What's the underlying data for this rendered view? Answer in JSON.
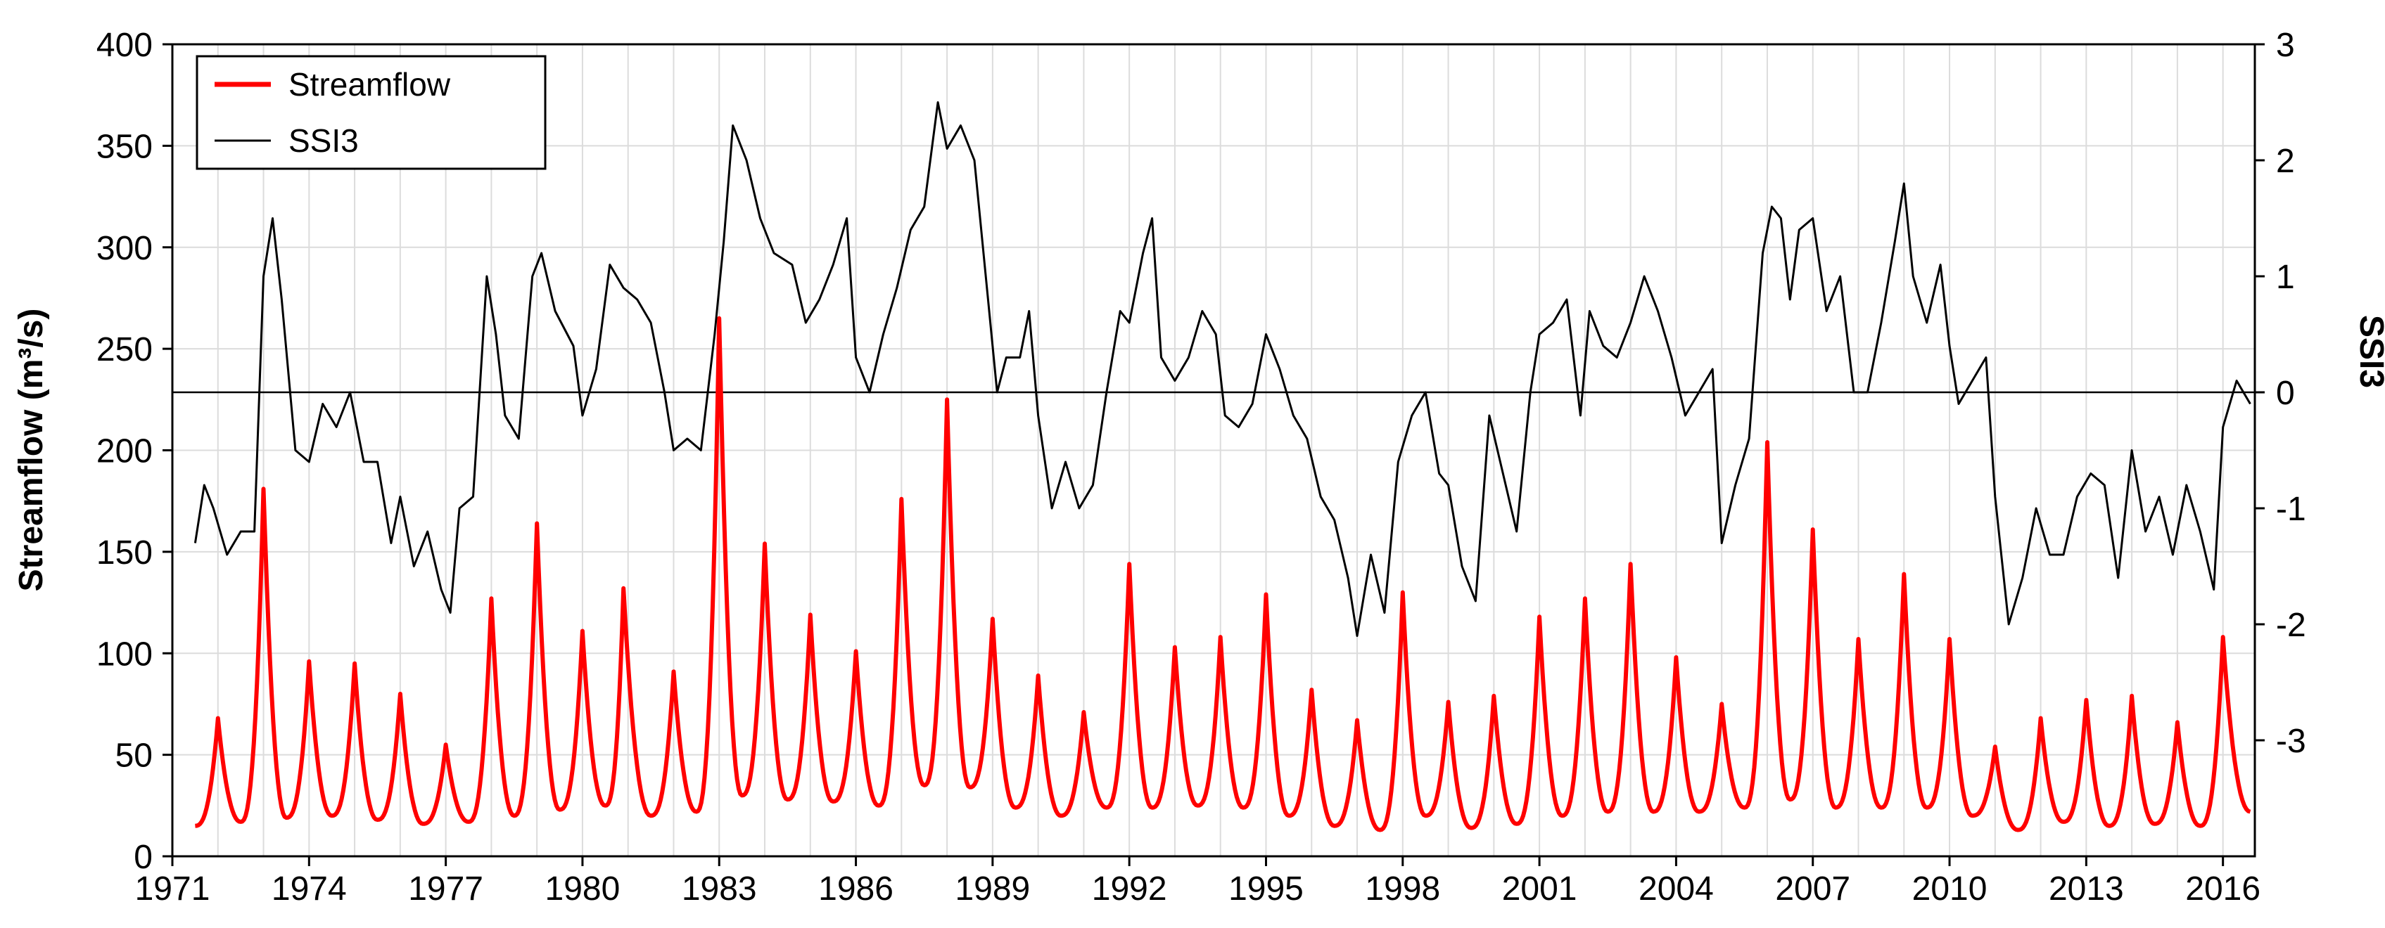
{
  "chart_data": {
    "type": "line",
    "title": "",
    "xlabel": "",
    "ylabel": "Streamflow (m³/s)",
    "y2label": "SSI3",
    "xlim": [
      1971,
      2016.7
    ],
    "ylim": [
      0,
      400
    ],
    "y2lim": [
      -4.0,
      3.0
    ],
    "x_ticks": [
      1971,
      1974,
      1977,
      1980,
      1983,
      1986,
      1989,
      1992,
      1995,
      1998,
      2001,
      2004,
      2007,
      2010,
      2013,
      2016
    ],
    "y_ticks": [
      0,
      50,
      100,
      150,
      200,
      250,
      300,
      350,
      400
    ],
    "y2_ticks": [
      -3,
      -2,
      -1,
      0,
      1,
      2,
      3
    ],
    "grid": true,
    "reference_line_y2": 0,
    "legend_position": "top-left",
    "series": [
      {
        "name": "Streamflow",
        "axis": "left",
        "color": "#ff0000",
        "peaks": [
          [
            1972.0,
            68
          ],
          [
            1973.0,
            181
          ],
          [
            1974.0,
            96
          ],
          [
            1975.0,
            95
          ],
          [
            1976.0,
            80
          ],
          [
            1977.0,
            55
          ],
          [
            1978.0,
            127
          ],
          [
            1979.0,
            164
          ],
          [
            1980.0,
            111
          ],
          [
            1980.9,
            132
          ],
          [
            1982.0,
            91
          ],
          [
            1983.0,
            265
          ],
          [
            1984.0,
            154
          ],
          [
            1985.0,
            119
          ],
          [
            1986.0,
            101
          ],
          [
            1987.0,
            176
          ],
          [
            1988.0,
            225
          ],
          [
            1989.0,
            117
          ],
          [
            1990.0,
            89
          ],
          [
            1991.0,
            71
          ],
          [
            1992.0,
            144
          ],
          [
            1993.0,
            103
          ],
          [
            1994.0,
            108
          ],
          [
            1995.0,
            129
          ],
          [
            1996.0,
            82
          ],
          [
            1997.0,
            67
          ],
          [
            1998.0,
            130
          ],
          [
            1999.0,
            76
          ],
          [
            2000.0,
            79
          ],
          [
            2001.0,
            118
          ],
          [
            2002.0,
            127
          ],
          [
            2003.0,
            144
          ],
          [
            2004.0,
            98
          ],
          [
            2005.0,
            75
          ],
          [
            2006.0,
            204
          ],
          [
            2007.0,
            161
          ],
          [
            2008.0,
            107
          ],
          [
            2009.0,
            139
          ],
          [
            2010.0,
            107
          ],
          [
            2011.0,
            54
          ],
          [
            2012.0,
            68
          ],
          [
            2013.0,
            77
          ],
          [
            2014.0,
            79
          ],
          [
            2015.0,
            66
          ],
          [
            2016.0,
            108
          ]
        ],
        "troughs": [
          [
            1971.5,
            15
          ],
          [
            1972.5,
            17
          ],
          [
            1973.5,
            19
          ],
          [
            1974.5,
            20
          ],
          [
            1975.5,
            18
          ],
          [
            1976.5,
            16
          ],
          [
            1977.5,
            17
          ],
          [
            1978.5,
            20
          ],
          [
            1979.5,
            23
          ],
          [
            1980.5,
            25
          ],
          [
            1981.5,
            20
          ],
          [
            1982.5,
            22
          ],
          [
            1983.5,
            30
          ],
          [
            1984.5,
            28
          ],
          [
            1985.5,
            27
          ],
          [
            1986.5,
            25
          ],
          [
            1987.5,
            35
          ],
          [
            1988.5,
            34
          ],
          [
            1989.5,
            24
          ],
          [
            1990.5,
            20
          ],
          [
            1991.5,
            24
          ],
          [
            1992.5,
            24
          ],
          [
            1993.5,
            25
          ],
          [
            1994.5,
            24
          ],
          [
            1995.5,
            20
          ],
          [
            1996.5,
            15
          ],
          [
            1997.5,
            13
          ],
          [
            1998.5,
            20
          ],
          [
            1999.5,
            14
          ],
          [
            2000.5,
            16
          ],
          [
            2001.5,
            20
          ],
          [
            2002.5,
            22
          ],
          [
            2003.5,
            22
          ],
          [
            2004.5,
            22
          ],
          [
            2005.5,
            24
          ],
          [
            2006.5,
            28
          ],
          [
            2007.5,
            24
          ],
          [
            2008.5,
            24
          ],
          [
            2009.5,
            24
          ],
          [
            2010.5,
            20
          ],
          [
            2011.5,
            13
          ],
          [
            2012.5,
            17
          ],
          [
            2013.5,
            15
          ],
          [
            2014.5,
            16
          ],
          [
            2015.5,
            15
          ],
          [
            2016.6,
            22
          ]
        ]
      },
      {
        "name": "SSI3",
        "axis": "right",
        "color": "#000000",
        "values": [
          [
            1971.5,
            -1.3
          ],
          [
            1971.7,
            -0.8
          ],
          [
            1971.9,
            -1.0
          ],
          [
            1972.2,
            -1.4
          ],
          [
            1972.5,
            -1.2
          ],
          [
            1972.8,
            -1.2
          ],
          [
            1973.0,
            1.0
          ],
          [
            1973.2,
            1.5
          ],
          [
            1973.4,
            0.8
          ],
          [
            1973.7,
            -0.5
          ],
          [
            1974.0,
            -0.6
          ],
          [
            1974.3,
            -0.1
          ],
          [
            1974.6,
            -0.3
          ],
          [
            1974.9,
            0.0
          ],
          [
            1975.2,
            -0.6
          ],
          [
            1975.5,
            -0.6
          ],
          [
            1975.8,
            -1.3
          ],
          [
            1976.0,
            -0.9
          ],
          [
            1976.3,
            -1.5
          ],
          [
            1976.6,
            -1.2
          ],
          [
            1976.9,
            -1.7
          ],
          [
            1977.1,
            -1.9
          ],
          [
            1977.3,
            -1.0
          ],
          [
            1977.6,
            -0.9
          ],
          [
            1977.9,
            1.0
          ],
          [
            1978.1,
            0.5
          ],
          [
            1978.3,
            -0.2
          ],
          [
            1978.6,
            -0.4
          ],
          [
            1978.9,
            1.0
          ],
          [
            1979.1,
            1.2
          ],
          [
            1979.4,
            0.7
          ],
          [
            1979.8,
            0.4
          ],
          [
            1980.0,
            -0.2
          ],
          [
            1980.3,
            0.2
          ],
          [
            1980.6,
            1.1
          ],
          [
            1980.9,
            0.9
          ],
          [
            1981.2,
            0.8
          ],
          [
            1981.5,
            0.6
          ],
          [
            1981.8,
            0.0
          ],
          [
            1982.0,
            -0.5
          ],
          [
            1982.3,
            -0.4
          ],
          [
            1982.6,
            -0.5
          ],
          [
            1982.9,
            0.5
          ],
          [
            1983.1,
            1.3
          ],
          [
            1983.3,
            2.3
          ],
          [
            1983.6,
            2.0
          ],
          [
            1983.9,
            1.5
          ],
          [
            1984.2,
            1.2
          ],
          [
            1984.6,
            1.1
          ],
          [
            1984.9,
            0.6
          ],
          [
            1985.2,
            0.8
          ],
          [
            1985.5,
            1.1
          ],
          [
            1985.8,
            1.5
          ],
          [
            1986.0,
            0.3
          ],
          [
            1986.3,
            0.0
          ],
          [
            1986.6,
            0.5
          ],
          [
            1986.9,
            0.9
          ],
          [
            1987.2,
            1.4
          ],
          [
            1987.5,
            1.6
          ],
          [
            1987.8,
            2.5
          ],
          [
            1988.0,
            2.1
          ],
          [
            1988.3,
            2.3
          ],
          [
            1988.6,
            2.0
          ],
          [
            1988.9,
            0.8
          ],
          [
            1989.1,
            0.0
          ],
          [
            1989.3,
            0.3
          ],
          [
            1989.6,
            0.3
          ],
          [
            1989.8,
            0.7
          ],
          [
            1990.0,
            -0.2
          ],
          [
            1990.3,
            -1.0
          ],
          [
            1990.6,
            -0.6
          ],
          [
            1990.9,
            -1.0
          ],
          [
            1991.2,
            -0.8
          ],
          [
            1991.5,
            0.0
          ],
          [
            1991.8,
            0.7
          ],
          [
            1992.0,
            0.6
          ],
          [
            1992.3,
            1.2
          ],
          [
            1992.5,
            1.5
          ],
          [
            1992.7,
            0.3
          ],
          [
            1993.0,
            0.1
          ],
          [
            1993.3,
            0.3
          ],
          [
            1993.6,
            0.7
          ],
          [
            1993.9,
            0.5
          ],
          [
            1994.1,
            -0.2
          ],
          [
            1994.4,
            -0.3
          ],
          [
            1994.7,
            -0.1
          ],
          [
            1995.0,
            0.5
          ],
          [
            1995.3,
            0.2
          ],
          [
            1995.6,
            -0.2
          ],
          [
            1995.9,
            -0.4
          ],
          [
            1996.2,
            -0.9
          ],
          [
            1996.5,
            -1.1
          ],
          [
            1996.8,
            -1.6
          ],
          [
            1997.0,
            -2.1
          ],
          [
            1997.3,
            -1.4
          ],
          [
            1997.6,
            -1.9
          ],
          [
            1997.9,
            -0.6
          ],
          [
            1998.2,
            -0.2
          ],
          [
            1998.5,
            0.0
          ],
          [
            1998.8,
            -0.7
          ],
          [
            1999.0,
            -0.8
          ],
          [
            1999.3,
            -1.5
          ],
          [
            1999.6,
            -1.8
          ],
          [
            1999.9,
            -0.2
          ],
          [
            2000.2,
            -0.7
          ],
          [
            2000.5,
            -1.2
          ],
          [
            2000.8,
            0.0
          ],
          [
            2001.0,
            0.5
          ],
          [
            2001.3,
            0.6
          ],
          [
            2001.6,
            0.8
          ],
          [
            2001.9,
            -0.2
          ],
          [
            2002.1,
            0.7
          ],
          [
            2002.4,
            0.4
          ],
          [
            2002.7,
            0.3
          ],
          [
            2003.0,
            0.6
          ],
          [
            2003.3,
            1.0
          ],
          [
            2003.6,
            0.7
          ],
          [
            2003.9,
            0.3
          ],
          [
            2004.2,
            -0.2
          ],
          [
            2004.5,
            0.0
          ],
          [
            2004.8,
            0.2
          ],
          [
            2005.0,
            -1.3
          ],
          [
            2005.3,
            -0.8
          ],
          [
            2005.6,
            -0.4
          ],
          [
            2005.9,
            1.2
          ],
          [
            2006.1,
            1.6
          ],
          [
            2006.3,
            1.5
          ],
          [
            2006.5,
            0.8
          ],
          [
            2006.7,
            1.4
          ],
          [
            2007.0,
            1.5
          ],
          [
            2007.3,
            0.7
          ],
          [
            2007.6,
            1.0
          ],
          [
            2007.9,
            0.0
          ],
          [
            2008.2,
            0.0
          ],
          [
            2008.5,
            0.6
          ],
          [
            2008.8,
            1.3
          ],
          [
            2009.0,
            1.8
          ],
          [
            2009.2,
            1.0
          ],
          [
            2009.5,
            0.6
          ],
          [
            2009.8,
            1.1
          ],
          [
            2010.0,
            0.4
          ],
          [
            2010.2,
            -0.1
          ],
          [
            2010.5,
            0.1
          ],
          [
            2010.8,
            0.3
          ],
          [
            2011.0,
            -0.9
          ],
          [
            2011.3,
            -2.0
          ],
          [
            2011.6,
            -1.6
          ],
          [
            2011.9,
            -1.0
          ],
          [
            2012.2,
            -1.4
          ],
          [
            2012.5,
            -1.4
          ],
          [
            2012.8,
            -0.9
          ],
          [
            2013.1,
            -0.7
          ],
          [
            2013.4,
            -0.8
          ],
          [
            2013.7,
            -1.6
          ],
          [
            2014.0,
            -0.5
          ],
          [
            2014.3,
            -1.2
          ],
          [
            2014.6,
            -0.9
          ],
          [
            2014.9,
            -1.4
          ],
          [
            2015.2,
            -0.8
          ],
          [
            2015.5,
            -1.2
          ],
          [
            2015.8,
            -1.7
          ],
          [
            2016.0,
            -0.3
          ],
          [
            2016.3,
            0.1
          ],
          [
            2016.6,
            -0.1
          ]
        ]
      }
    ]
  },
  "legend": {
    "streamflow_label": "Streamflow",
    "ssi3_label": "SSI3",
    "streamflow_color": "#ff0000",
    "ssi3_color": "#000000"
  },
  "axes": {
    "left_title": "Streamflow (m³/s)",
    "right_title": "SSI3"
  }
}
